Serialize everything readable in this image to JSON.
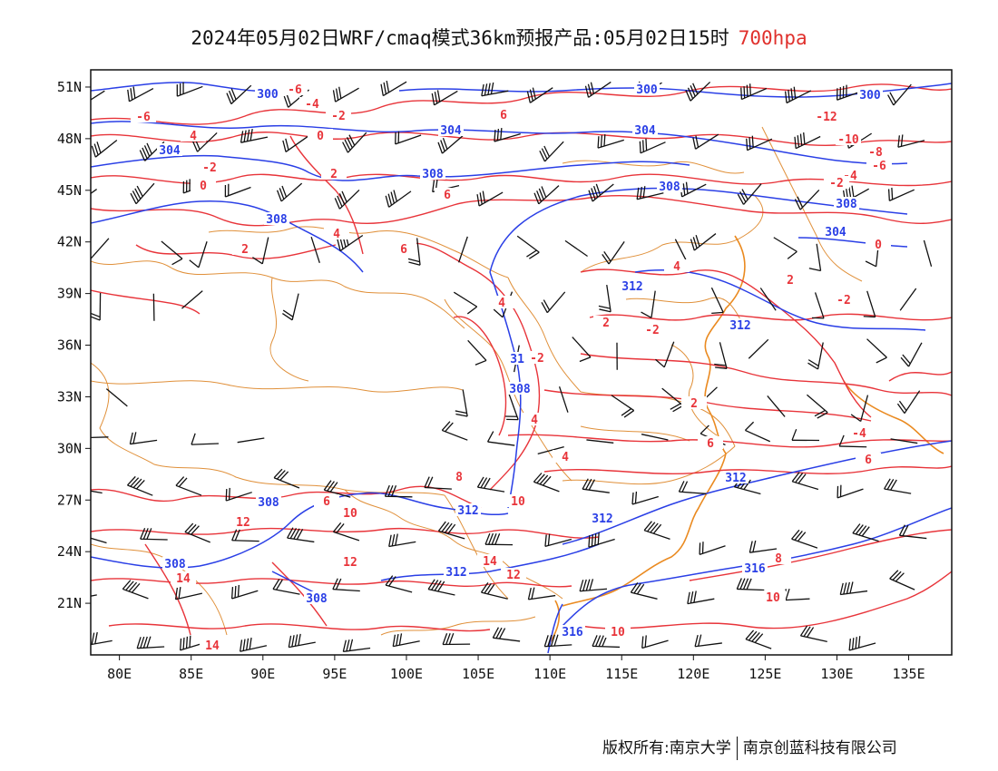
{
  "title": {
    "main": "2024年05月02日WRF/cmaq模式36km预报产品:05月02日15时",
    "level": "700hpa"
  },
  "colors": {
    "geopotential": "#2a3fe6",
    "temperature": "#e8343a",
    "border": "#e0903a",
    "wind": "#111111",
    "level_text": "#e0302c"
  },
  "map": {
    "lon_range": [
      78,
      138
    ],
    "lat_range": [
      18,
      52
    ],
    "x_ticks": [
      "80E",
      "85E",
      "90E",
      "95E",
      "100E",
      "105E",
      "110E",
      "115E",
      "120E",
      "125E",
      "130E",
      "135E"
    ],
    "y_ticks": [
      "51N",
      "48N",
      "45N",
      "42N",
      "39N",
      "36N",
      "33N",
      "30N",
      "27N",
      "24N",
      "21N"
    ],
    "geopotential_labels": [
      "300",
      "300",
      "300",
      "304",
      "304",
      "304",
      "308",
      "308",
      "308",
      "308",
      "304",
      "312",
      "312",
      "308",
      "308",
      "312",
      "312",
      "312",
      "312",
      "308",
      "316",
      "316",
      "308",
      "312"
    ],
    "temperature_labels": [
      "-6",
      "-6",
      "-4",
      "-2",
      "-6",
      "4",
      "-2",
      "0",
      "0",
      "2",
      "6",
      "-12",
      "-10",
      "-8",
      "-6",
      "-4",
      "-2",
      "0",
      "4",
      "2",
      "4",
      "2",
      "6",
      "4",
      "-2",
      "2",
      "2",
      "-2",
      "4",
      "-2",
      "4",
      "6",
      "6",
      "-4",
      "6",
      "8",
      "10",
      "6",
      "12",
      "14",
      "14",
      "12",
      "10",
      "12",
      "8",
      "10",
      "10",
      "14"
    ]
  },
  "footer": {
    "copyright": "版权所有:南京大学",
    "company": "南京创蓝科技有限公司"
  }
}
